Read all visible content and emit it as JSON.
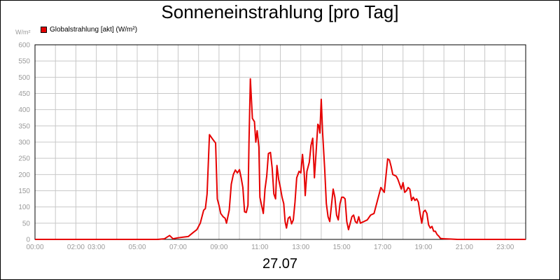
{
  "chart_data": {
    "type": "line",
    "title": "Sonneneinstrahlung [pro Tag]",
    "xlabel": "27.07",
    "ylabel": "W/m²",
    "ylim": [
      0,
      600
    ],
    "xlim": [
      "00:00",
      "24:00"
    ],
    "grid": true,
    "legend_position": "top-left",
    "yticks": [
      "0",
      "50",
      "100",
      "150",
      "200",
      "250",
      "300",
      "350",
      "400",
      "450",
      "500",
      "550",
      "600"
    ],
    "xticks": [
      {
        "label": "00:00",
        "hour": 0
      },
      {
        "label": "02:00",
        "hour": 2
      },
      {
        "label": "03:00",
        "hour": 3
      },
      {
        "label": "05:00",
        "hour": 5
      },
      {
        "label": "07:00",
        "hour": 7
      },
      {
        "label": "09:00",
        "hour": 9
      },
      {
        "label": "11:00",
        "hour": 11
      },
      {
        "label": "13:00",
        "hour": 13
      },
      {
        "label": "15:00",
        "hour": 15
      },
      {
        "label": "17:00",
        "hour": 17
      },
      {
        "label": "19:00",
        "hour": 19
      },
      {
        "label": "21:00",
        "hour": 21
      },
      {
        "label": "23:00",
        "hour": 23
      }
    ],
    "series": [
      {
        "name": "Globalstrahlung [akt] (W/m²)",
        "color": "#e60000",
        "points": [
          [
            "00:00",
            0
          ],
          [
            "06:00",
            0
          ],
          [
            "06:20",
            2
          ],
          [
            "06:35",
            12
          ],
          [
            "06:45",
            2
          ],
          [
            "07:00",
            5
          ],
          [
            "07:15",
            7
          ],
          [
            "07:30",
            9
          ],
          [
            "07:45",
            22
          ],
          [
            "07:55",
            30
          ],
          [
            "08:05",
            50
          ],
          [
            "08:15",
            90
          ],
          [
            "08:20",
            95
          ],
          [
            "08:25",
            140
          ],
          [
            "08:32",
            323
          ],
          [
            "08:42",
            308
          ],
          [
            "08:50",
            297
          ],
          [
            "08:55",
            125
          ],
          [
            "09:00",
            105
          ],
          [
            "09:05",
            80
          ],
          [
            "09:12",
            70
          ],
          [
            "09:18",
            65
          ],
          [
            "09:22",
            50
          ],
          [
            "09:30",
            90
          ],
          [
            "09:36",
            170
          ],
          [
            "09:42",
            200
          ],
          [
            "09:48",
            214
          ],
          [
            "09:54",
            205
          ],
          [
            "10:00",
            215
          ],
          [
            "10:05",
            190
          ],
          [
            "10:10",
            160
          ],
          [
            "10:15",
            85
          ],
          [
            "10:20",
            83
          ],
          [
            "10:25",
            105
          ],
          [
            "10:28",
            300
          ],
          [
            "10:32",
            495
          ],
          [
            "10:38",
            373
          ],
          [
            "10:44",
            363
          ],
          [
            "10:48",
            300
          ],
          [
            "10:52",
            335
          ],
          [
            "10:57",
            285
          ],
          [
            "11:00",
            130
          ],
          [
            "11:06",
            100
          ],
          [
            "11:10",
            80
          ],
          [
            "11:15",
            155
          ],
          [
            "11:20",
            195
          ],
          [
            "11:25",
            265
          ],
          [
            "11:31",
            268
          ],
          [
            "11:36",
            220
          ],
          [
            "11:41",
            140
          ],
          [
            "11:46",
            125
          ],
          [
            "11:50",
            228
          ],
          [
            "11:55",
            185
          ],
          [
            "12:00",
            160
          ],
          [
            "12:05",
            130
          ],
          [
            "12:10",
            110
          ],
          [
            "12:14",
            55
          ],
          [
            "12:18",
            35
          ],
          [
            "12:23",
            65
          ],
          [
            "12:28",
            70
          ],
          [
            "12:33",
            48
          ],
          [
            "12:38",
            60
          ],
          [
            "12:43",
            115
          ],
          [
            "12:48",
            190
          ],
          [
            "12:55",
            210
          ],
          [
            "13:00",
            205
          ],
          [
            "13:05",
            262
          ],
          [
            "13:10",
            205
          ],
          [
            "13:13",
            135
          ],
          [
            "13:18",
            210
          ],
          [
            "13:25",
            238
          ],
          [
            "13:30",
            290
          ],
          [
            "13:35",
            312
          ],
          [
            "13:40",
            190
          ],
          [
            "13:45",
            270
          ],
          [
            "13:50",
            355
          ],
          [
            "13:53",
            350
          ],
          [
            "13:56",
            328
          ],
          [
            "14:00",
            432
          ],
          [
            "14:04",
            330
          ],
          [
            "14:10",
            220
          ],
          [
            "14:15",
            110
          ],
          [
            "14:20",
            70
          ],
          [
            "14:25",
            55
          ],
          [
            "14:30",
            105
          ],
          [
            "14:35",
            155
          ],
          [
            "14:40",
            130
          ],
          [
            "14:45",
            75
          ],
          [
            "14:50",
            60
          ],
          [
            "14:55",
            110
          ],
          [
            "15:00",
            130
          ],
          [
            "15:05",
            130
          ],
          [
            "15:10",
            125
          ],
          [
            "15:15",
            55
          ],
          [
            "15:20",
            30
          ],
          [
            "15:25",
            50
          ],
          [
            "15:30",
            70
          ],
          [
            "15:35",
            75
          ],
          [
            "15:40",
            55
          ],
          [
            "15:45",
            50
          ],
          [
            "15:50",
            70
          ],
          [
            "15:55",
            50
          ],
          [
            "16:05",
            55
          ],
          [
            "16:15",
            60
          ],
          [
            "16:25",
            75
          ],
          [
            "16:35",
            80
          ],
          [
            "16:45",
            120
          ],
          [
            "16:55",
            160
          ],
          [
            "17:05",
            145
          ],
          [
            "17:15",
            248
          ],
          [
            "17:20",
            245
          ],
          [
            "17:25",
            225
          ],
          [
            "17:30",
            200
          ],
          [
            "17:40",
            195
          ],
          [
            "17:45",
            185
          ],
          [
            "17:50",
            170
          ],
          [
            "17:55",
            155
          ],
          [
            "18:00",
            175
          ],
          [
            "18:05",
            145
          ],
          [
            "18:10",
            150
          ],
          [
            "18:15",
            160
          ],
          [
            "18:20",
            155
          ],
          [
            "18:25",
            120
          ],
          [
            "18:30",
            130
          ],
          [
            "18:35",
            120
          ],
          [
            "18:40",
            125
          ],
          [
            "18:45",
            115
          ],
          [
            "18:50",
            80
          ],
          [
            "18:55",
            50
          ],
          [
            "19:00",
            85
          ],
          [
            "19:05",
            90
          ],
          [
            "19:10",
            80
          ],
          [
            "19:15",
            45
          ],
          [
            "19:20",
            35
          ],
          [
            "19:25",
            40
          ],
          [
            "19:30",
            25
          ],
          [
            "19:35",
            25
          ],
          [
            "19:40",
            15
          ],
          [
            "19:45",
            10
          ],
          [
            "19:50",
            3
          ],
          [
            "20:00",
            2
          ],
          [
            "20:20",
            1
          ],
          [
            "20:40",
            0
          ],
          [
            "24:00",
            0
          ]
        ]
      }
    ]
  }
}
